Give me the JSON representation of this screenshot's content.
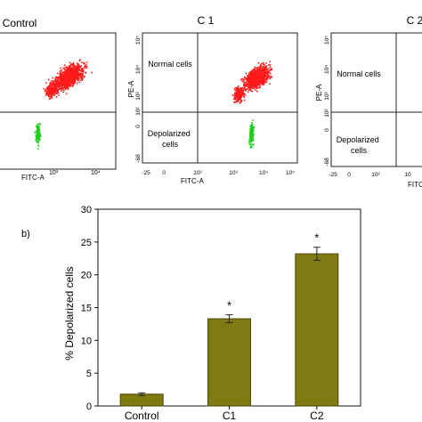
{
  "panel_b_label": "b)",
  "flow_panels": [
    {
      "title": "Control",
      "x_axis_label": "FITC-A",
      "y_axis_label": "",
      "x_ticks": [
        "10³",
        "10⁴"
      ],
      "y_ticks": [],
      "quadrant_upper_left": "",
      "quadrant_lower_left": ""
    },
    {
      "title": "C 1",
      "x_axis_label": "FITC-A",
      "y_axis_label": "PE-A",
      "x_ticks": [
        "-25",
        "0",
        "10²",
        "10³",
        "10⁴",
        "10⁵"
      ],
      "y_ticks": [
        "10⁵",
        "10⁴",
        "10³",
        "10²",
        "0",
        "-68"
      ],
      "quadrant_upper_left": "Normal cells",
      "quadrant_lower_left": "Depolarized cells"
    },
    {
      "title": "C 2",
      "x_axis_label": "FITC",
      "y_axis_label": "PE-A",
      "x_ticks": [
        "-25",
        "0",
        "10²",
        "10"
      ],
      "y_ticks": [
        "10⁵",
        "10⁴",
        "10³",
        "10²",
        "0",
        "-68"
      ],
      "quadrant_upper_left": "Normal cells",
      "quadrant_lower_left": "Depolarized cells"
    }
  ],
  "colors": {
    "normal_dots": "#ff1a1a",
    "depolarized_dots": "#22cc22",
    "bar_fill": "#7f7a12",
    "bar_stroke": "#4d4a06"
  },
  "chart_data": {
    "type": "bar",
    "categories": [
      "Control",
      "C1",
      "C2"
    ],
    "values": [
      1.8,
      13.3,
      23.2
    ],
    "errors": [
      0.2,
      0.6,
      1.0
    ],
    "significance": [
      "",
      "*",
      "*"
    ],
    "ylabel": "% Depolarized cells",
    "xlabel": "",
    "ylim": [
      0,
      30
    ],
    "y_ticks": [
      0,
      5,
      10,
      15,
      20,
      25,
      30
    ],
    "grid": false,
    "legend": "none"
  }
}
